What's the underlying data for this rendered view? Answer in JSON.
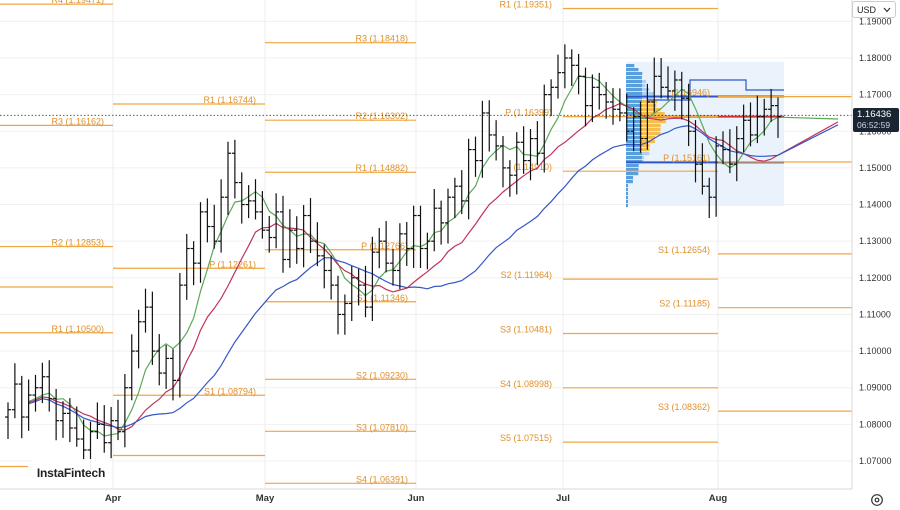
{
  "toolbar": {
    "currency_label": "USD",
    "currency_icon": "chevron-down-icon"
  },
  "price_tag": {
    "price": "1.16436",
    "countdown": "06:52:59"
  },
  "brand": {
    "name": "InstaFintech"
  },
  "footer": {
    "settings_icon": "gear-icon"
  },
  "colors": {
    "pivot": "#f0a640",
    "sma_fast": "#5aa85a",
    "sma_mid": "#c0335a",
    "sma_slow": "#3557c8",
    "bars": "#111111",
    "volume_profile_blue": "#3f8fd8",
    "volume_profile_orange": "#f5b73a"
  },
  "chart_data": {
    "type": "ohlc-bar",
    "ylim": [
      1.062,
      1.196
    ],
    "y_ticks": [
      "1.19000",
      "1.18000",
      "1.17000",
      "1.16000",
      "1.15000",
      "1.14000",
      "1.13000",
      "1.12000",
      "1.11000",
      "1.10000",
      "1.09000",
      "1.08000",
      "1.07000"
    ],
    "x_ticks": [
      "Apr",
      "May",
      "Jun",
      "Jul",
      "Aug"
    ],
    "current_price": 1.16436,
    "pivot_levels": [
      {
        "period": "March",
        "label": "R4 (1.19471)",
        "value": 1.19471
      },
      {
        "period": "March",
        "label": "R3 (1.16162)",
        "value": 1.16162
      },
      {
        "period": "March",
        "label": "R2 (1.12853)",
        "value": 1.12853
      },
      {
        "period": "March",
        "label": "R1 (1.10500)",
        "value": 1.105
      },
      {
        "period": "April",
        "label": "R1 (1.16744)",
        "value": 1.16744
      },
      {
        "period": "April",
        "label": "P (1.12261)",
        "value": 1.12261
      },
      {
        "period": "April",
        "label": "S1 (1.08794)",
        "value": 1.08794
      },
      {
        "period": "May",
        "label": "R3 (1.18418)",
        "value": 1.18418
      },
      {
        "period": "May",
        "label": "R2 (1.16302)",
        "value": 1.16302
      },
      {
        "period": "May",
        "label": "R1 (1.14882)",
        "value": 1.14882
      },
      {
        "period": "May",
        "label": "P (1.12766)",
        "value": 1.12766
      },
      {
        "period": "May",
        "label": "S1 (1.11346)",
        "value": 1.11346
      },
      {
        "period": "May",
        "label": "S2 (1.09230)",
        "value": 1.0923
      },
      {
        "period": "May",
        "label": "S3 (1.07810)",
        "value": 1.0781
      },
      {
        "period": "May",
        "label": "S4 (1.06391)",
        "value": 1.06391
      },
      {
        "period": "June",
        "label": "R1 (1.19351)",
        "value": 1.19351
      },
      {
        "period": "June",
        "label": "P (1.16399)",
        "value": 1.16399
      },
      {
        "period": "June",
        "label": "(1.14910)",
        "value": 1.1491
      },
      {
        "period": "June",
        "label": "S2 (1.11964)",
        "value": 1.11964
      },
      {
        "period": "June",
        "label": "S3 (1.10481)",
        "value": 1.10481
      },
      {
        "period": "June",
        "label": "S4 (1.08998)",
        "value": 1.08998
      },
      {
        "period": "June",
        "label": "S5 (1.07515)",
        "value": 1.07515
      },
      {
        "period": "July",
        "label": "(1.16946)",
        "value": 1.16946
      },
      {
        "period": "July",
        "label": "P (1.15161)",
        "value": 1.15161
      },
      {
        "period": "July",
        "label": "S1 (1.12654)",
        "value": 1.12654
      },
      {
        "period": "July",
        "label": "S2 (1.11185)",
        "value": 1.11185
      },
      {
        "period": "July",
        "label": "S3 (1.08362)",
        "value": 1.08362
      }
    ],
    "ohlc_close": [
      1.084,
      1.091,
      1.082,
      1.088,
      1.09,
      1.093,
      1.087,
      1.081,
      1.083,
      1.079,
      1.076,
      1.073,
      1.078,
      1.08,
      1.075,
      1.081,
      1.078,
      1.09,
      1.1,
      1.108,
      1.112,
      1.1,
      1.094,
      1.098,
      1.092,
      1.118,
      1.128,
      1.124,
      1.138,
      1.134,
      1.13,
      1.142,
      1.154,
      1.146,
      1.14,
      1.141,
      1.138,
      1.133,
      1.131,
      1.138,
      1.125,
      1.133,
      1.128,
      1.137,
      1.13,
      1.126,
      1.122,
      1.118,
      1.11,
      1.113,
      1.12,
      1.118,
      1.112,
      1.127,
      1.13,
      1.124,
      1.122,
      1.132,
      1.128,
      1.137,
      1.128,
      1.13,
      1.139,
      1.135,
      1.142,
      1.145,
      1.141,
      1.155,
      1.152,
      1.165,
      1.159,
      1.156,
      1.15,
      1.148,
      1.157,
      1.152,
      1.158,
      1.154,
      1.17,
      1.172,
      1.176,
      1.18,
      1.178,
      1.175,
      1.167,
      1.172,
      1.17,
      1.168,
      1.166,
      1.165,
      1.16,
      1.164,
      1.158,
      1.168,
      1.175,
      1.172,
      1.171,
      1.174,
      1.169,
      1.16,
      1.151,
      1.145,
      1.142,
      1.156,
      1.155,
      1.151,
      1.158,
      1.163,
      1.159,
      1.164,
      1.166,
      1.167,
      1.164
    ],
    "sma_fast_end": 1.162,
    "sma_mid_end": 1.164,
    "sma_slow_end": 1.163
  }
}
